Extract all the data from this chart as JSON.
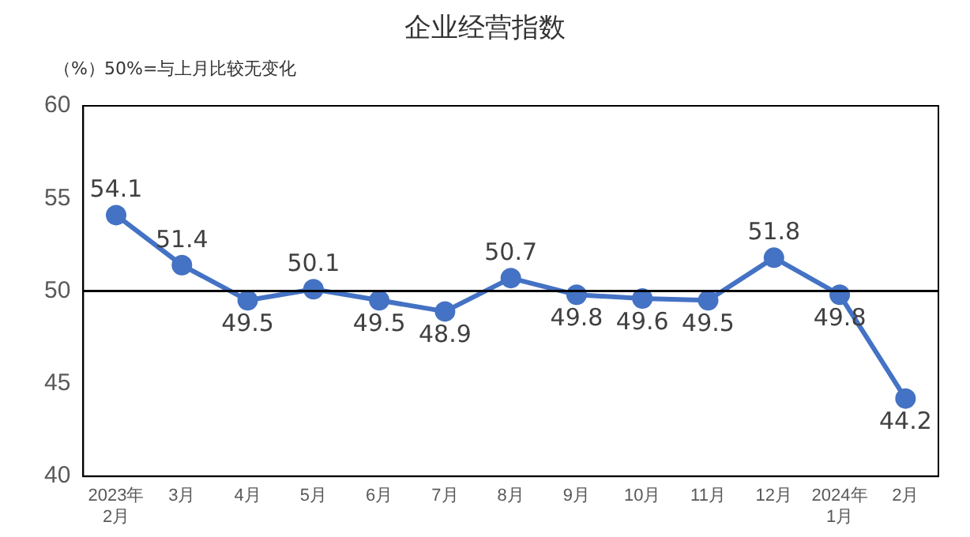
{
  "chart_data": {
    "type": "line",
    "title": "企业经营指数",
    "ylabel": "（%）",
    "annotations": [
      "50%=与上月比较无变化"
    ],
    "categories": [
      "2023年\n2月",
      "3月",
      "4月",
      "5月",
      "6月",
      "7月",
      "8月",
      "9月",
      "10月",
      "11月",
      "12月",
      "2024年\n1月",
      "2月"
    ],
    "series": [
      {
        "color": "#4472c4",
        "values": [
          54.1,
          51.4,
          49.5,
          50.1,
          49.5,
          48.9,
          50.7,
          49.8,
          49.6,
          49.5,
          51.8,
          49.8,
          44.2
        ]
      }
    ],
    "ylim": [
      40,
      60
    ],
    "yticks": [
      40,
      45,
      50,
      55,
      60
    ],
    "grid": false,
    "legend": false,
    "marker": "circle",
    "line_style": "solid",
    "data_labels": true,
    "ref_lines": [
      {
        "axis": "y",
        "value": 50,
        "color": "#000000"
      }
    ]
  }
}
